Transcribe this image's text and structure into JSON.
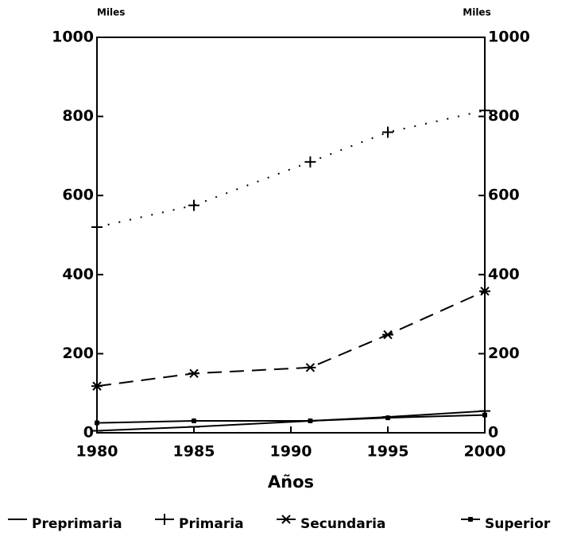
{
  "chart_data": {
    "type": "line",
    "y_label": "Miles",
    "y2_label": "Miles",
    "x_label": "Años",
    "x": [
      1980,
      1985,
      1991,
      1995,
      2000
    ],
    "xlim": [
      1980,
      2000
    ],
    "xticks": [
      1980,
      1985,
      1990,
      1995,
      2000
    ],
    "ylim": [
      0,
      1000
    ],
    "yticks": [
      0,
      200,
      400,
      600,
      800,
      1000
    ],
    "y2lim": [
      0,
      1000
    ],
    "y2ticks": [
      0,
      200,
      400,
      600,
      800,
      1000
    ],
    "series": [
      {
        "name": "Preprimaria",
        "color": "#000000",
        "dash": "solid",
        "marker": "dash",
        "values": [
          5,
          15,
          30,
          40,
          55
        ]
      },
      {
        "name": "Primaria",
        "color": "#000000",
        "dash": "dotted",
        "marker": "plus",
        "values": [
          520,
          575,
          685,
          760,
          815
        ]
      },
      {
        "name": "Secundaria",
        "color": "#000000",
        "dash": "dashed",
        "marker": "star",
        "values": [
          118,
          150,
          165,
          248,
          358
        ]
      },
      {
        "name": "Superior",
        "color": "#000000",
        "dash": "solid",
        "marker": "dot",
        "values": [
          25,
          30,
          30,
          38,
          45
        ]
      }
    ]
  }
}
